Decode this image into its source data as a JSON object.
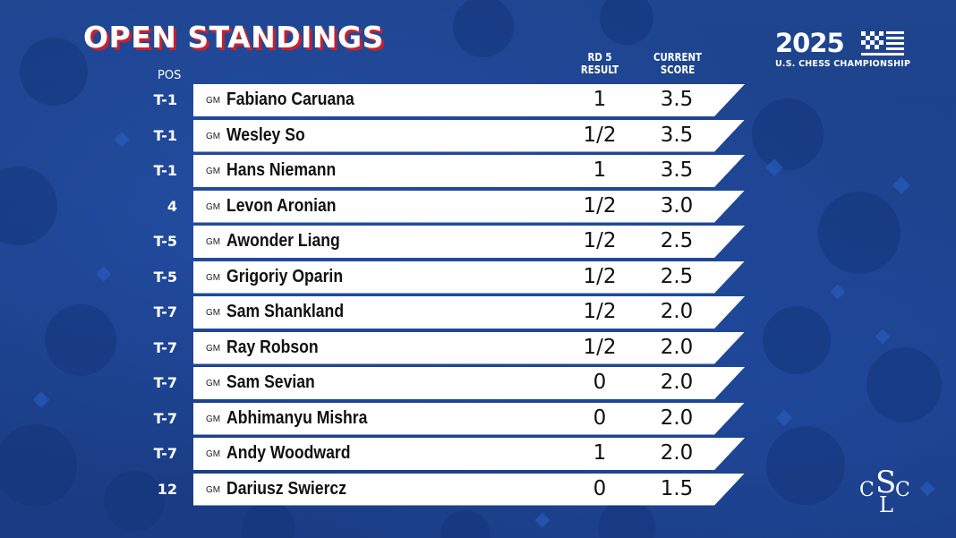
{
  "title": "OPEN STANDINGS",
  "headers": {
    "pos": "POS",
    "result_line1": "RD 5",
    "result_line2": "RESULT",
    "score_line1": "CURRENT",
    "score_line2": "SCORE"
  },
  "logo": {
    "year": "2025",
    "subtitle": "U.S. CHESS CHAMPIONSHIP",
    "club_monogram": "SLC"
  },
  "colors": {
    "background": "#1c3f8c",
    "title_shadow": "#c8202f",
    "row_background": "#ffffff"
  },
  "standings": [
    {
      "pos": "T-1",
      "title": "GM",
      "name": "Fabiano Caruana",
      "result": "1",
      "score": "3.5"
    },
    {
      "pos": "T-1",
      "title": "GM",
      "name": "Wesley So",
      "result": "1/2",
      "score": "3.5"
    },
    {
      "pos": "T-1",
      "title": "GM",
      "name": "Hans Niemann",
      "result": "1",
      "score": "3.5"
    },
    {
      "pos": "4",
      "title": "GM",
      "name": "Levon Aronian",
      "result": "1/2",
      "score": "3.0"
    },
    {
      "pos": "T-5",
      "title": "GM",
      "name": "Awonder Liang",
      "result": "1/2",
      "score": "2.5"
    },
    {
      "pos": "T-5",
      "title": "GM",
      "name": "Grigoriy Oparin",
      "result": "1/2",
      "score": "2.5"
    },
    {
      "pos": "T-7",
      "title": "GM",
      "name": "Sam Shankland",
      "result": "1/2",
      "score": "2.0"
    },
    {
      "pos": "T-7",
      "title": "GM",
      "name": "Ray Robson",
      "result": "1/2",
      "score": "2.0"
    },
    {
      "pos": "T-7",
      "title": "GM",
      "name": "Sam Sevian",
      "result": "0",
      "score": "2.0"
    },
    {
      "pos": "T-7",
      "title": "GM",
      "name": "Abhimanyu Mishra",
      "result": "0",
      "score": "2.0"
    },
    {
      "pos": "T-7",
      "title": "GM",
      "name": "Andy Woodward",
      "result": "1",
      "score": "2.0"
    },
    {
      "pos": "12",
      "title": "GM",
      "name": "Dariusz Swiercz",
      "result": "0",
      "score": "1.5"
    }
  ]
}
